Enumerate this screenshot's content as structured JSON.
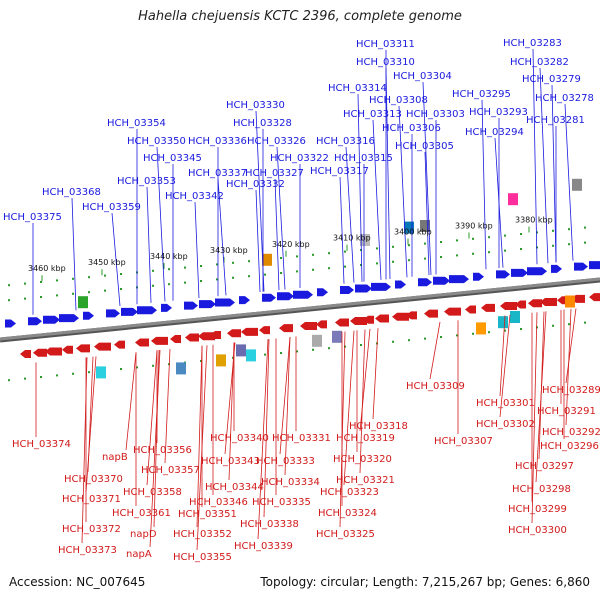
{
  "title": "Hahella chejuensis KCTC 2396, complete genome",
  "footer": {
    "accession": "Accession: NC_007645",
    "info": "Topology: circular; Length: 7,215,267 bp; Genes: 6,860"
  },
  "colors": {
    "forward": "#1a1adf",
    "reverse": "#d21a1a",
    "backbone": "#8a8a8a",
    "tick": "#2a9a2a"
  },
  "scale_labels": [
    "3460 kbp",
    "3450 kbp",
    "3440 kbp",
    "3430 kbp",
    "3420 kbp",
    "3410 kbp",
    "3400 kbp",
    "3390 kbp",
    "3380 kbp"
  ],
  "top_labels": [
    "HCH_03375",
    "HCH_03368",
    "HCH_03359",
    "HCH_03354",
    "HCH_03353",
    "HCH_03350",
    "HCH_03345",
    "HCH_03342",
    "HCH_03337",
    "HCH_03336",
    "HCH_03332",
    "HCH_03330",
    "HCH_03328",
    "HCH_03327",
    "HCH_03326",
    "HCH_03322",
    "HCH_03317",
    "HCH_03316",
    "HCH_03315",
    "HCH_03314",
    "HCH_03313",
    "HCH_03311",
    "HCH_03310",
    "HCH_03308",
    "HCH_03306",
    "HCH_03305",
    "HCH_03304",
    "HCH_03303",
    "HCH_03295",
    "HCH_03294",
    "HCH_03293",
    "HCH_03283",
    "HCH_03282",
    "HCH_03281",
    "HCH_03279",
    "HCH_03278"
  ],
  "bottom_labels": [
    "HCH_03374",
    "HCH_03370",
    "HCH_03371",
    "HCH_03372",
    "HCH_03373",
    "napB",
    "HCH_03361",
    "napD",
    "napA",
    "HCH_03356",
    "HCH_03357",
    "HCH_03358",
    "HCH_03351",
    "HCH_03352",
    "HCH_03355",
    "HCH_03346",
    "HCH_03344",
    "HCH_03343",
    "HCH_03340",
    "HCH_03338",
    "HCH_03339",
    "HCH_03335",
    "HCH_03334",
    "HCH_03333",
    "HCH_03331",
    "HCH_03318",
    "HCH_03319",
    "HCH_03320",
    "HCH_03321",
    "HCH_03323",
    "HCH_03324",
    "HCH_03325",
    "HCH_03309",
    "HCH_03307",
    "HCH_03301",
    "HCH_03302",
    "HCH_03296",
    "HCH_03297",
    "HCH_03298",
    "HCH_03299",
    "HCH_03300",
    "HCH_03289",
    "HCH_03291",
    "HCH_03292"
  ]
}
